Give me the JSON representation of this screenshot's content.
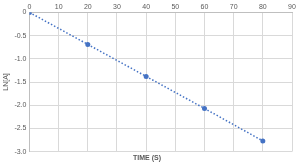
{
  "chart_data": {
    "type": "scatter",
    "x_label": "TIME (S)",
    "y_label": "LN[A]",
    "x": [
      0,
      20,
      40,
      60,
      80
    ],
    "values": [
      0,
      -0.69,
      -1.38,
      -2.07,
      -2.77
    ],
    "color": "#4472c4",
    "marker": "circle",
    "line_style": "dotted",
    "xlim": [
      0,
      90
    ],
    "xticks": [
      0,
      10,
      20,
      30,
      40,
      50,
      60,
      70,
      80,
      90
    ],
    "ylim": [
      -3,
      0
    ],
    "yticks": [
      -3,
      -2.5,
      -2,
      -1.5,
      -1,
      -0.5,
      0
    ],
    "grid": true
  }
}
